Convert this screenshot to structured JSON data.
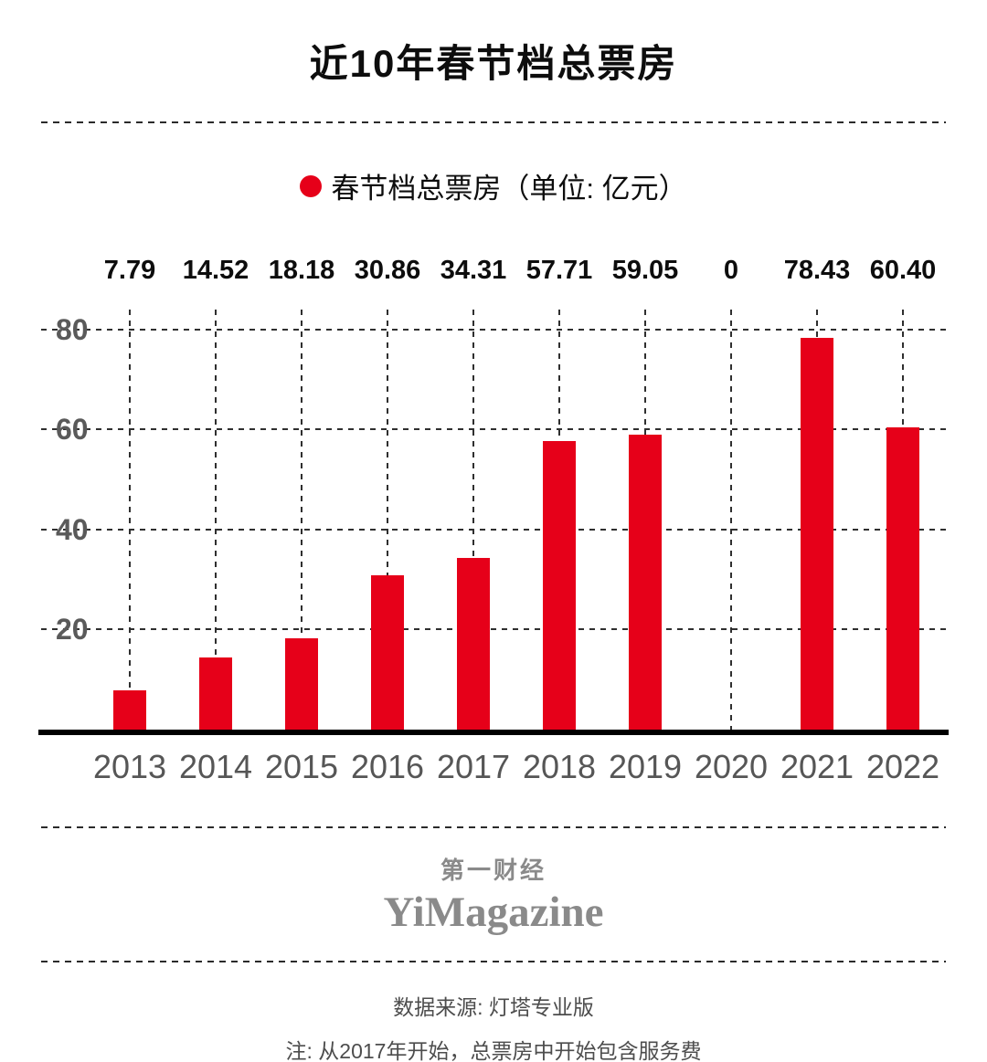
{
  "title": "近10年春节档总票房",
  "legend": {
    "label": "春节档总票房（单位: 亿元）",
    "marker_color": "#e60019"
  },
  "chart_data": {
    "type": "bar",
    "title": "近10年春节档总票房",
    "categories": [
      "2013",
      "2014",
      "2015",
      "2016",
      "2017",
      "2018",
      "2019",
      "2020",
      "2021",
      "2022"
    ],
    "values": [
      7.79,
      14.52,
      18.18,
      30.86,
      34.31,
      57.71,
      59.05,
      0,
      78.43,
      60.4
    ],
    "value_labels": [
      "7.79",
      "14.52",
      "18.18",
      "30.86",
      "34.31",
      "57.71",
      "59.05",
      "0",
      "78.43",
      "60.40"
    ],
    "xlabel": "",
    "ylabel": "",
    "ylim": [
      0,
      84
    ],
    "yticks": [
      20,
      40,
      60,
      80
    ],
    "grid": "dashed",
    "bar_color": "#e60019",
    "legend_position": "top",
    "legend_entries": [
      "春节档总票房（单位: 亿元）"
    ]
  },
  "footer": {
    "brand_cn": "第一财经",
    "brand_en": "YiMagazine"
  },
  "notes": {
    "source": "数据来源: 灯塔专业版",
    "note": "注: 从2017年开始，总票房中开始包含服务费"
  }
}
